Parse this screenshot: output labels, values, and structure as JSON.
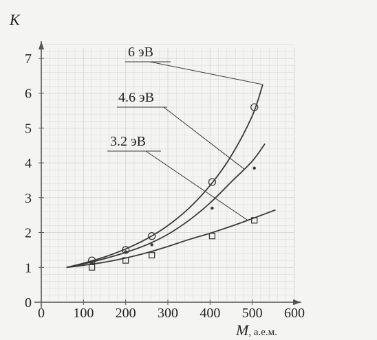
{
  "chart_data": {
    "type": "line",
    "ylabel": "K",
    "xlabel_var": "M",
    "xlabel_unit": ", а.е.м.",
    "xlim": [
      0,
      600
    ],
    "ylim": [
      0,
      7
    ],
    "xticks": [
      "0",
      "100",
      "200",
      "300",
      "400",
      "500",
      "600"
    ],
    "yticks": [
      "0",
      "1",
      "2",
      "3",
      "4",
      "5",
      "6",
      "7"
    ],
    "grid": true,
    "series": [
      {
        "name": "6 эВ",
        "marker": "circle",
        "points": [
          [
            120,
            1.2
          ],
          [
            200,
            1.5
          ],
          [
            262,
            1.9
          ],
          [
            405,
            3.45
          ],
          [
            505,
            5.6
          ]
        ],
        "curve": [
          [
            60,
            1.0
          ],
          [
            100,
            1.12
          ],
          [
            150,
            1.3
          ],
          [
            200,
            1.53
          ],
          [
            250,
            1.82
          ],
          [
            300,
            2.2
          ],
          [
            350,
            2.7
          ],
          [
            400,
            3.35
          ],
          [
            450,
            4.2
          ],
          [
            500,
            5.35
          ],
          [
            525,
            6.25
          ]
        ]
      },
      {
        "name": "4.6 эВ",
        "marker": "dot",
        "points": [
          [
            120,
            1.15
          ],
          [
            200,
            1.45
          ],
          [
            262,
            1.65
          ],
          [
            405,
            2.7
          ],
          [
            505,
            3.85
          ]
        ],
        "curve": [
          [
            60,
            1.0
          ],
          [
            100,
            1.1
          ],
          [
            150,
            1.25
          ],
          [
            200,
            1.43
          ],
          [
            250,
            1.65
          ],
          [
            300,
            1.95
          ],
          [
            350,
            2.35
          ],
          [
            400,
            2.85
          ],
          [
            450,
            3.45
          ],
          [
            500,
            4.05
          ],
          [
            530,
            4.55
          ]
        ]
      },
      {
        "name": "3.2 эВ",
        "marker": "square",
        "points": [
          [
            120,
            1.0
          ],
          [
            200,
            1.2
          ],
          [
            262,
            1.35
          ],
          [
            405,
            1.9
          ],
          [
            505,
            2.35
          ]
        ],
        "curve": [
          [
            60,
            1.0
          ],
          [
            100,
            1.06
          ],
          [
            150,
            1.15
          ],
          [
            200,
            1.27
          ],
          [
            250,
            1.42
          ],
          [
            300,
            1.6
          ],
          [
            350,
            1.8
          ],
          [
            400,
            1.98
          ],
          [
            450,
            2.18
          ],
          [
            500,
            2.4
          ],
          [
            555,
            2.65
          ]
        ]
      }
    ],
    "colors": {
      "axis": "#555555",
      "grid": "#d6d6d3",
      "curve": "#3a3a3a",
      "paper": "#f4f4f2"
    }
  }
}
